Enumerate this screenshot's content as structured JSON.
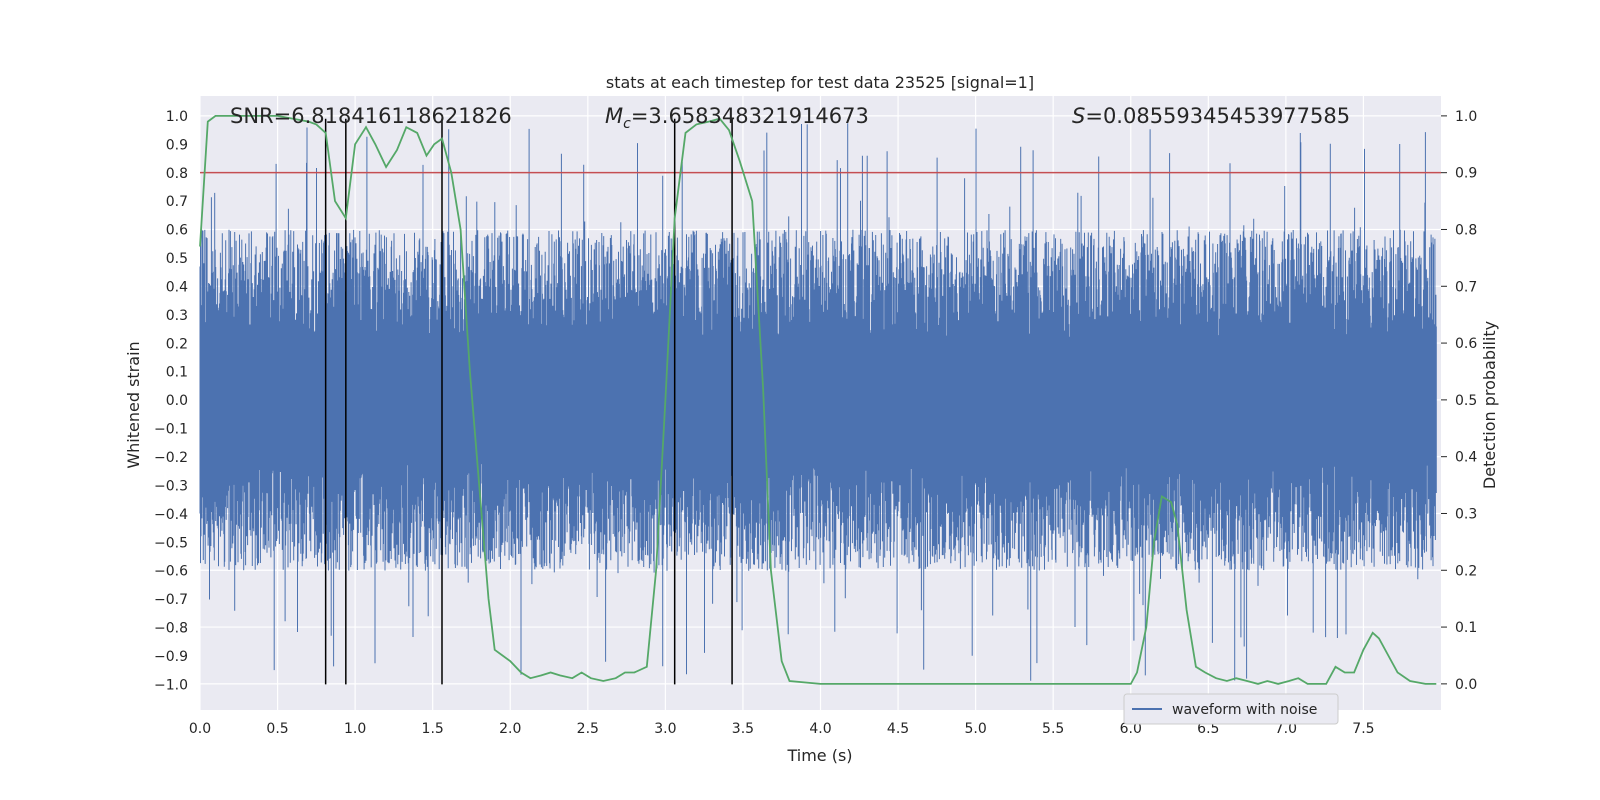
{
  "chart_data": {
    "type": "line",
    "title": "stats at each timestep for test data 23525 [signal=1]",
    "xlabel": "Time (s)",
    "ylabel": "Whitened strain",
    "y2label": "Detection probability",
    "xlim": [
      0.0,
      8.0
    ],
    "ylim": [
      -1.09,
      1.07
    ],
    "y2lim": [
      -0.046,
      1.035
    ],
    "xticks": [
      "0.0",
      "0.5",
      "1.0",
      "1.5",
      "2.0",
      "2.5",
      "3.0",
      "3.5",
      "4.0",
      "4.5",
      "5.0",
      "5.5",
      "6.0",
      "6.5",
      "7.0",
      "7.5"
    ],
    "yticks": [
      "1.0",
      "0.9",
      "0.8",
      "0.7",
      "0.6",
      "0.5",
      "0.4",
      "0.3",
      "0.2",
      "0.1",
      "0.0",
      "-0.1",
      "-0.2",
      "-0.3",
      "-0.4",
      "-0.5",
      "-0.6",
      "-0.7",
      "-0.8",
      "-0.9",
      "-1.0"
    ],
    "y2ticks": [
      "0.0",
      "0.1",
      "0.2",
      "0.3",
      "0.4",
      "0.5",
      "0.6",
      "0.7",
      "0.8",
      "0.9",
      "1.0"
    ],
    "annotations": {
      "snr": "SNR=6.818416118621826",
      "mc": "=3.658348321914673",
      "mc_symbol": "M",
      "mc_sub": "c",
      "s": "=0.08559345453977585",
      "s_symbol": "S"
    },
    "legend": {
      "label": "waveform with noise",
      "position": "lower-right"
    },
    "threshold": {
      "value": 0.9,
      "axis": "right",
      "color": "#c44e52"
    },
    "vertical_markers": [
      0.81,
      0.94,
      1.56,
      3.06,
      3.43
    ],
    "series": [
      {
        "name": "waveform with noise",
        "axis": "left",
        "color": "#4c72b0",
        "kind": "dense-noise",
        "typical_max": 0.6,
        "typical_min": -0.6,
        "peak_max": 0.98,
        "peak_min": -0.99
      },
      {
        "name": "detection probability",
        "axis": "right",
        "color": "#55a868",
        "x": [
          0.0,
          0.05,
          0.1,
          0.15,
          0.2,
          0.3,
          0.4,
          0.5,
          0.6,
          0.7,
          0.75,
          0.81,
          0.87,
          0.94,
          1.0,
          1.07,
          1.13,
          1.2,
          1.27,
          1.33,
          1.4,
          1.46,
          1.51,
          1.56,
          1.62,
          1.68,
          1.74,
          1.8,
          1.86,
          1.9,
          1.95,
          2.0,
          2.07,
          2.13,
          2.2,
          2.26,
          2.32,
          2.4,
          2.46,
          2.52,
          2.6,
          2.68,
          2.74,
          2.8,
          2.88,
          2.94,
          3.0,
          3.06,
          3.13,
          3.2,
          3.28,
          3.35,
          3.41,
          3.48,
          3.56,
          3.63,
          3.68,
          3.75,
          3.8,
          4.0,
          4.5,
          5.0,
          5.5,
          6.0,
          6.04,
          6.1,
          6.15,
          6.2,
          6.26,
          6.3,
          6.36,
          6.42,
          6.48,
          6.55,
          6.62,
          6.68,
          6.75,
          6.82,
          6.88,
          6.95,
          7.02,
          7.08,
          7.14,
          7.2,
          7.26,
          7.32,
          7.38,
          7.44,
          7.5,
          7.56,
          7.6,
          7.66,
          7.72,
          7.8,
          7.9,
          7.97
        ],
        "values": [
          0.77,
          0.99,
          1.0,
          1.0,
          1.0,
          1.0,
          1.0,
          1.0,
          0.995,
          0.99,
          0.985,
          0.97,
          0.85,
          0.82,
          0.95,
          0.98,
          0.95,
          0.91,
          0.94,
          0.98,
          0.97,
          0.93,
          0.95,
          0.96,
          0.9,
          0.8,
          0.55,
          0.35,
          0.15,
          0.06,
          0.05,
          0.04,
          0.02,
          0.01,
          0.015,
          0.02,
          0.015,
          0.01,
          0.02,
          0.01,
          0.005,
          0.01,
          0.02,
          0.02,
          0.03,
          0.2,
          0.5,
          0.82,
          0.97,
          0.985,
          0.99,
          0.995,
          0.975,
          0.92,
          0.85,
          0.52,
          0.2,
          0.04,
          0.005,
          0.0,
          0.0,
          0.0,
          0.0,
          0.0,
          0.02,
          0.1,
          0.25,
          0.33,
          0.32,
          0.28,
          0.13,
          0.03,
          0.02,
          0.01,
          0.005,
          0.01,
          0.005,
          0.0,
          0.005,
          0.0,
          0.005,
          0.01,
          0.0,
          0.0,
          0.0,
          0.03,
          0.02,
          0.02,
          0.06,
          0.09,
          0.08,
          0.05,
          0.02,
          0.005,
          0.0,
          0.0
        ]
      }
    ]
  }
}
